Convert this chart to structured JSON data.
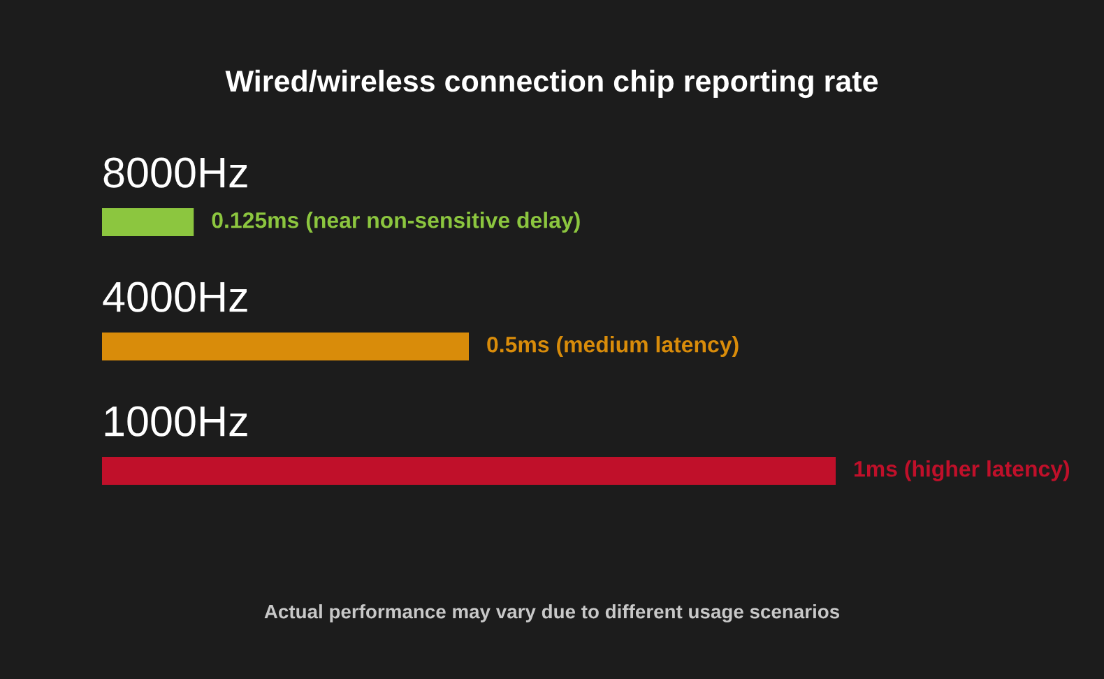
{
  "chart_data": {
    "type": "bar",
    "orientation": "horizontal",
    "title": "Wired/wireless connection chip reporting rate",
    "categories": [
      "8000Hz",
      "4000Hz",
      "1000Hz"
    ],
    "values": [
      0.125,
      0.5,
      1
    ],
    "xlim": [
      0,
      1
    ],
    "tick_labels": "y",
    "colors": [
      "#8cc63f",
      "#d98c0a",
      "#c0102a"
    ],
    "value_labels": [
      "0.125ms (near non-sensitive delay)",
      "0.5ms (medium latency)",
      "1ms (higher latency)"
    ],
    "annotations": [
      "Actual performance may vary due to different usage scenarios"
    ]
  }
}
